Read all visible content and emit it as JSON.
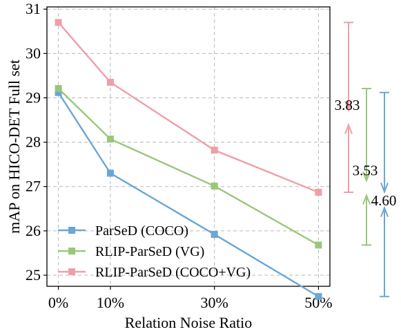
{
  "chart_data": {
    "type": "line",
    "title": "",
    "xlabel": "Relation Noise Ratio",
    "ylabel": "mAP on HICO-DET Full set",
    "x_ticks": [
      "0%",
      "10%",
      "30%",
      "50%"
    ],
    "x": [
      0,
      10,
      30,
      50
    ],
    "y_ticks": [
      25,
      26,
      27,
      28,
      29,
      30,
      31
    ],
    "ylim": [
      24.75,
      31.05
    ],
    "xlim": [
      -2.2,
      52.2
    ],
    "grid": true,
    "grid_style": "dashed",
    "legend_position": "lower-left",
    "series": [
      {
        "name": "ParSeD (COCO)",
        "color": "#6aa6d6",
        "values": [
          29.12,
          27.3,
          25.92,
          24.52
        ]
      },
      {
        "name": "RLIP-ParSeD (VG)",
        "color": "#99c77a",
        "values": [
          29.21,
          28.07,
          27.01,
          25.68
        ]
      },
      {
        "name": "RLIP-ParSeD (COCO+VG)",
        "color": "#ef9ea7",
        "values": [
          30.7,
          29.35,
          27.82,
          26.87
        ]
      }
    ],
    "annotations": [
      {
        "label": "3.83",
        "series": "RLIP-ParSeD (COCO+VG)",
        "from": 30.7,
        "to": 26.87,
        "color": "#ef9ea7"
      },
      {
        "label": "3.53",
        "series": "RLIP-ParSeD (VG)",
        "from": 29.21,
        "to": 25.68,
        "color": "#99c77a"
      },
      {
        "label": "4.60",
        "series": "ParSeD (COCO)",
        "from": 29.12,
        "to": 24.52,
        "color": "#6aa6d6"
      }
    ]
  }
}
